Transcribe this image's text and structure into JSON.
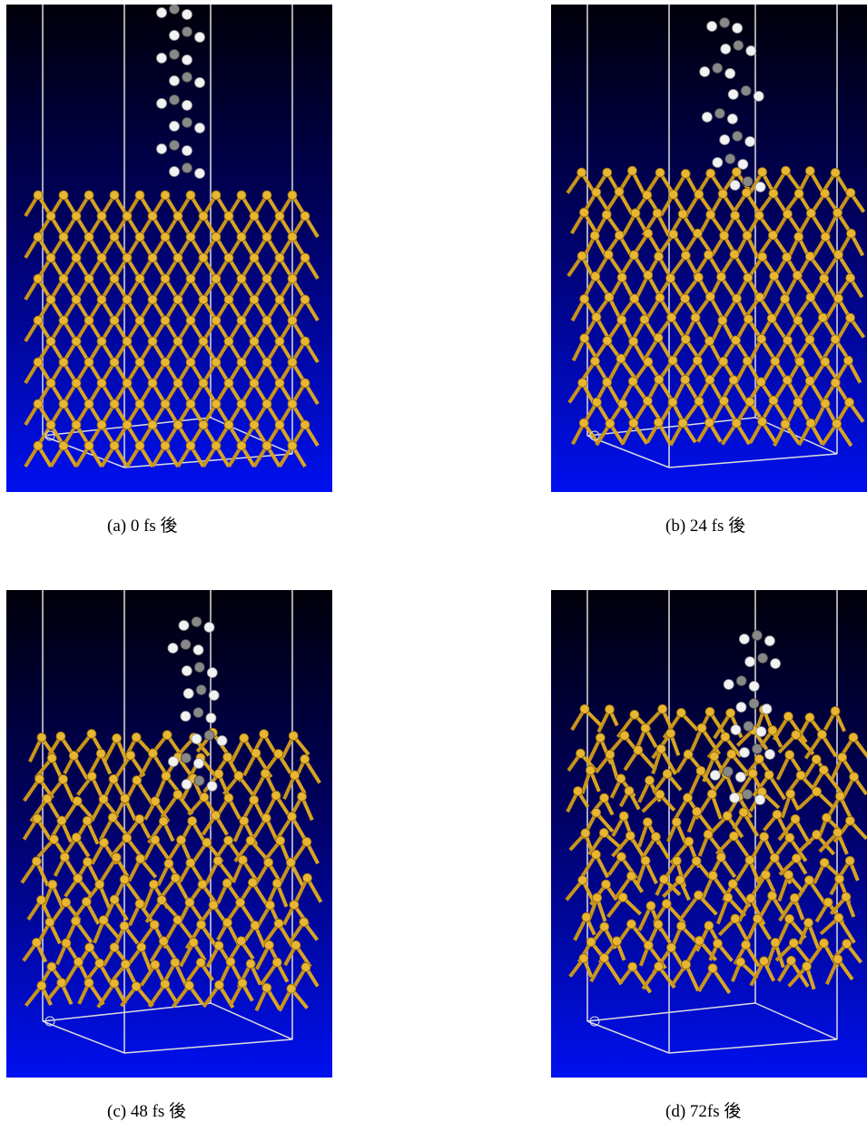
{
  "panels": [
    {
      "caption": "(a) 0 fs 後"
    },
    {
      "caption": "(b) 24 fs 後"
    },
    {
      "caption": "(c) 48 fs 後"
    },
    {
      "caption": "(d) 72fs 後"
    }
  ]
}
